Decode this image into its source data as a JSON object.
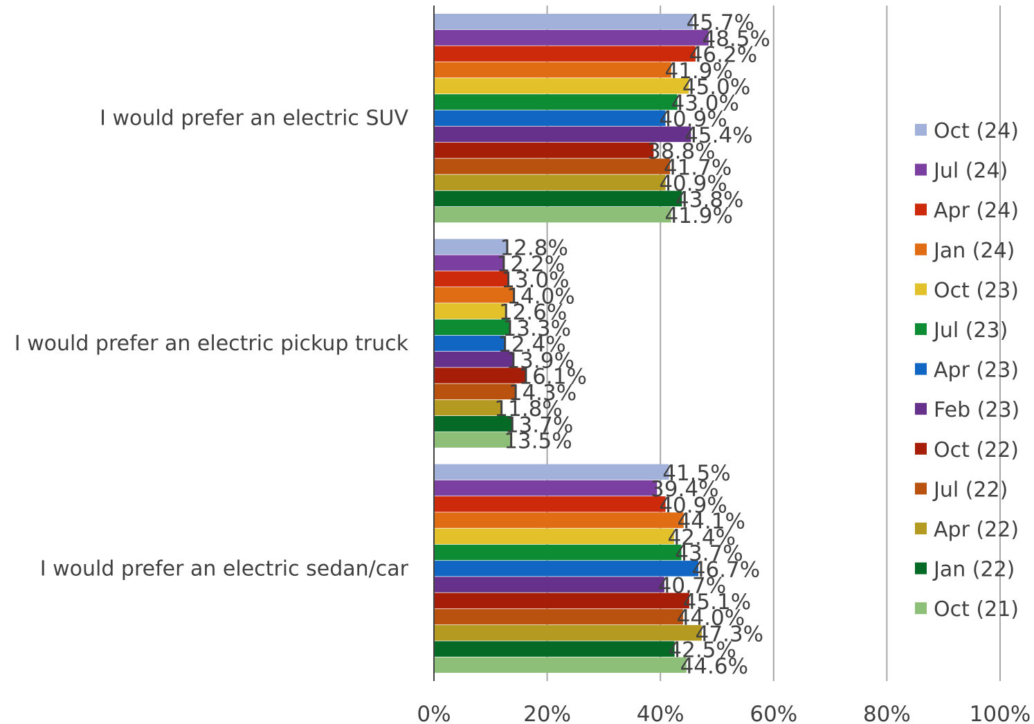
{
  "chart_data": {
    "type": "bar",
    "orientation": "horizontal",
    "categories": [
      "I would prefer an electric SUV",
      "I would prefer an electric pickup truck",
      "I would prefer an electric sedan/car"
    ],
    "series": [
      {
        "name": "Oct (24)",
        "color": "#a2b1da",
        "values": [
          45.7,
          12.8,
          41.5
        ]
      },
      {
        "name": "Jul (24)",
        "color": "#7a3fa0",
        "values": [
          48.5,
          12.2,
          39.4
        ]
      },
      {
        "name": "Apr (24)",
        "color": "#cc2a0a",
        "values": [
          46.2,
          13.0,
          40.9
        ]
      },
      {
        "name": "Jan (24)",
        "color": "#e06c14",
        "values": [
          41.9,
          14.0,
          44.1
        ]
      },
      {
        "name": "Oct (23)",
        "color": "#e3c12a",
        "values": [
          45.0,
          12.6,
          42.4
        ]
      },
      {
        "name": "Jul (23)",
        "color": "#0d8c34",
        "values": [
          43.0,
          13.3,
          43.7
        ]
      },
      {
        "name": "Apr (23)",
        "color": "#1066c2",
        "values": [
          40.9,
          12.4,
          46.7
        ]
      },
      {
        "name": "Feb (23)",
        "color": "#65318a",
        "values": [
          45.4,
          13.9,
          40.7
        ]
      },
      {
        "name": "Oct (22)",
        "color": "#a61e07",
        "values": [
          38.8,
          16.1,
          45.1
        ]
      },
      {
        "name": "Jul (22)",
        "color": "#b8520e",
        "values": [
          41.7,
          14.3,
          44.0
        ]
      },
      {
        "name": "Apr (22)",
        "color": "#b59a22",
        "values": [
          40.9,
          11.8,
          47.3
        ]
      },
      {
        "name": "Jan (22)",
        "color": "#066a27",
        "values": [
          43.8,
          13.7,
          42.5
        ]
      },
      {
        "name": "Oct (21)",
        "color": "#8ebf78",
        "values": [
          41.9,
          13.5,
          44.6
        ]
      }
    ],
    "xlim": [
      0,
      100
    ],
    "x_ticks": [
      0,
      20,
      40,
      60,
      80,
      100
    ],
    "x_tick_labels": [
      "0%",
      "20%",
      "40%",
      "60%",
      "80%",
      "100%"
    ],
    "value_suffix": "%",
    "grid": true,
    "legend_position": "right",
    "title": "",
    "xlabel": "",
    "ylabel": ""
  }
}
